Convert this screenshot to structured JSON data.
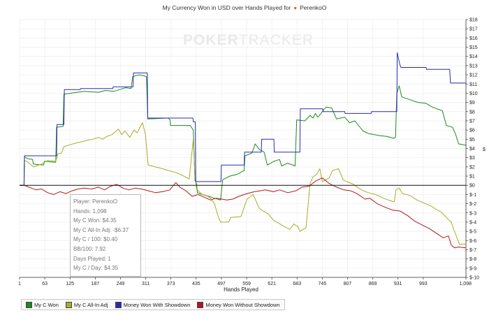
{
  "watermark": {
    "bold": "POKER",
    "light": "TRACKER"
  },
  "title": {
    "text": "My Currency Won in USD over Hands Played for",
    "player": "PerenkoO"
  },
  "chart_data": {
    "type": "line",
    "title": "My Currency Won in USD over Hands Played for PerenkoO",
    "xlabel": "Hands Played",
    "ylabel": "$",
    "xlim": [
      1,
      1098
    ],
    "ylim": [
      -10,
      18
    ],
    "x_ticks": [
      "1",
      "63",
      "125",
      "187",
      "249",
      "311",
      "373",
      "435",
      "497",
      "559",
      "621",
      "683",
      "745",
      "807",
      "869",
      "931",
      "993",
      "1,098"
    ],
    "y_ticks": [
      "$18",
      "$17",
      "$16",
      "$15",
      "$14",
      "$13",
      "$12",
      "$11",
      "$10",
      "$9",
      "$8",
      "$7",
      "$6",
      "$5",
      "$4",
      "$3",
      "$2",
      "$1",
      "$0",
      "$-1",
      "$-2",
      "$-3",
      "$-4",
      "$-5",
      "$-6",
      "$-7",
      "$-8",
      "$-9",
      "$-10"
    ],
    "grid": true,
    "legend_position": "bottom",
    "series": [
      {
        "name": "My C Won",
        "color": "#1c8a1c",
        "points": [
          [
            1,
            0
          ],
          [
            12,
            0
          ],
          [
            13,
            3.1
          ],
          [
            20,
            2.9
          ],
          [
            33,
            2.8
          ],
          [
            35,
            2.3
          ],
          [
            60,
            2.2
          ],
          [
            62,
            2.6
          ],
          [
            90,
            2.5
          ],
          [
            92,
            6.3
          ],
          [
            108,
            6.4
          ],
          [
            110,
            9.9
          ],
          [
            160,
            10.2
          ],
          [
            195,
            10.1
          ],
          [
            212,
            10.3
          ],
          [
            232,
            10.2
          ],
          [
            247,
            10.4
          ],
          [
            262,
            10.6
          ],
          [
            275,
            10.5
          ],
          [
            279,
            11.8
          ],
          [
            295,
            12.0
          ],
          [
            306,
            11.9
          ],
          [
            313,
            11.8
          ],
          [
            316,
            7.2
          ],
          [
            366,
            7.3
          ],
          [
            371,
            7.1
          ],
          [
            372,
            6.5
          ],
          [
            420,
            6.5
          ],
          [
            428,
            6.0
          ],
          [
            432,
            0.5
          ],
          [
            436,
            0.2
          ],
          [
            438,
            -0.8
          ],
          [
            450,
            -1.0
          ],
          [
            465,
            -1.2
          ],
          [
            480,
            -1.4
          ],
          [
            495,
            -1.6
          ],
          [
            500,
            0.6
          ],
          [
            518,
            1.0
          ],
          [
            536,
            1.2
          ],
          [
            553,
            1.6
          ],
          [
            555,
            3.2
          ],
          [
            572,
            3.5
          ],
          [
            580,
            4.5
          ],
          [
            590,
            3.9
          ],
          [
            602,
            3.6
          ],
          [
            610,
            2.2
          ],
          [
            626,
            2.6
          ],
          [
            640,
            2.8
          ],
          [
            645,
            2.1
          ],
          [
            660,
            2.4
          ],
          [
            678,
            2.1
          ],
          [
            682,
            7.1
          ],
          [
            702,
            7.0
          ],
          [
            715,
            7.6
          ],
          [
            722,
            7.3
          ],
          [
            728,
            7.8
          ],
          [
            734,
            7.4
          ],
          [
            742,
            7.8
          ],
          [
            748,
            8.2
          ],
          [
            755,
            8.5
          ],
          [
            768,
            8.4
          ],
          [
            780,
            7.2
          ],
          [
            800,
            7.4
          ],
          [
            812,
            6.8
          ],
          [
            825,
            7.0
          ],
          [
            845,
            5.9
          ],
          [
            860,
            5.6
          ],
          [
            885,
            5.4
          ],
          [
            905,
            5.3
          ],
          [
            920,
            5.1
          ],
          [
            925,
            5.2
          ],
          [
            928,
            10.0
          ],
          [
            934,
            10.8
          ],
          [
            940,
            9.6
          ],
          [
            960,
            9.3
          ],
          [
            980,
            9.0
          ],
          [
            1000,
            8.9
          ],
          [
            1015,
            8.5
          ],
          [
            1040,
            8.1
          ],
          [
            1050,
            6.5
          ],
          [
            1065,
            6.3
          ],
          [
            1072,
            5.6
          ],
          [
            1080,
            4.5
          ],
          [
            1098,
            4.35
          ]
        ]
      },
      {
        "name": "My C All-In Adj",
        "color": "#a8ac24",
        "points": [
          [
            1,
            0
          ],
          [
            12,
            0
          ],
          [
            13,
            2.7
          ],
          [
            22,
            2.5
          ],
          [
            35,
            2.0
          ],
          [
            55,
            2.3
          ],
          [
            70,
            2.7
          ],
          [
            90,
            2.6
          ],
          [
            95,
            3.4
          ],
          [
            104,
            3.5
          ],
          [
            110,
            4.2
          ],
          [
            125,
            4.4
          ],
          [
            140,
            4.6
          ],
          [
            160,
            4.8
          ],
          [
            180,
            5.0
          ],
          [
            195,
            5.2
          ],
          [
            205,
            5.0
          ],
          [
            215,
            5.3
          ],
          [
            228,
            5.5
          ],
          [
            236,
            5.8
          ],
          [
            244,
            6.1
          ],
          [
            252,
            5.5
          ],
          [
            260,
            5.9
          ],
          [
            272,
            5.2
          ],
          [
            282,
            6.0
          ],
          [
            290,
            5.7
          ],
          [
            303,
            6.8
          ],
          [
            310,
            5.6
          ],
          [
            317,
            2.2
          ],
          [
            335,
            2.0
          ],
          [
            352,
            1.8
          ],
          [
            367,
            1.6
          ],
          [
            385,
            1.4
          ],
          [
            400,
            1.1
          ],
          [
            418,
            0.7
          ],
          [
            428,
            5.0
          ],
          [
            432,
            0.9
          ],
          [
            436,
            -0.4
          ],
          [
            445,
            -0.8
          ],
          [
            450,
            -1.0
          ],
          [
            460,
            -1.1
          ],
          [
            470,
            -1.4
          ],
          [
            480,
            -2.0
          ],
          [
            490,
            -3.5
          ],
          [
            495,
            -4.0
          ],
          [
            515,
            -4.0
          ],
          [
            520,
            -3.5
          ],
          [
            545,
            -3.4
          ],
          [
            553,
            -2.4
          ],
          [
            560,
            -1.5
          ],
          [
            575,
            -1.0
          ],
          [
            590,
            -2.5
          ],
          [
            596,
            -2.7
          ],
          [
            612,
            -3.1
          ],
          [
            625,
            -3.8
          ],
          [
            645,
            -4.3
          ],
          [
            665,
            -4.8
          ],
          [
            675,
            -4.2
          ],
          [
            685,
            -4.5
          ],
          [
            690,
            -5.0
          ],
          [
            705,
            -4.6
          ],
          [
            715,
            0.2
          ],
          [
            722,
            0.9
          ],
          [
            731,
            1.2
          ],
          [
            739,
            1.8
          ],
          [
            745,
            0.4
          ],
          [
            762,
            0.8
          ],
          [
            770,
            1.6
          ],
          [
            785,
            1.8
          ],
          [
            796,
            0.6
          ],
          [
            805,
            0.4
          ],
          [
            822,
            0.1
          ],
          [
            834,
            -0.3
          ],
          [
            846,
            -0.6
          ],
          [
            858,
            -0.8
          ],
          [
            876,
            -1.0
          ],
          [
            895,
            -1.4
          ],
          [
            914,
            -1.7
          ],
          [
            922,
            -1.8
          ],
          [
            926,
            -0.5
          ],
          [
            934,
            -0.3
          ],
          [
            942,
            -0.9
          ],
          [
            960,
            -1.1
          ],
          [
            978,
            -1.6
          ],
          [
            994,
            -1.9
          ],
          [
            1010,
            -2.2
          ],
          [
            1025,
            -2.6
          ],
          [
            1040,
            -3.0
          ],
          [
            1052,
            -3.6
          ],
          [
            1062,
            -4.0
          ],
          [
            1068,
            -4.8
          ],
          [
            1075,
            -5.6
          ],
          [
            1082,
            -6.4
          ],
          [
            1098,
            -6.37
          ]
        ]
      },
      {
        "name": "Money Won With Showdown",
        "color": "#2a2ab8",
        "points": [
          [
            1,
            0
          ],
          [
            12,
            0
          ],
          [
            13,
            3.2
          ],
          [
            92,
            3.2
          ],
          [
            93,
            6.6
          ],
          [
            110,
            6.6
          ],
          [
            111,
            10.4
          ],
          [
            150,
            10.4
          ],
          [
            151,
            10.5
          ],
          [
            230,
            10.5
          ],
          [
            231,
            10.7
          ],
          [
            280,
            10.7
          ],
          [
            281,
            12.2
          ],
          [
            315,
            12.2
          ],
          [
            316,
            7.3
          ],
          [
            427,
            7.3
          ],
          [
            428,
            6.9
          ],
          [
            433,
            6.9
          ],
          [
            434,
            0.4
          ],
          [
            496,
            0.4
          ],
          [
            497,
            2.2
          ],
          [
            553,
            2.2
          ],
          [
            554,
            3.6
          ],
          [
            595,
            3.6
          ],
          [
            596,
            5.0
          ],
          [
            626,
            5.0
          ],
          [
            627,
            3.6
          ],
          [
            690,
            3.6
          ],
          [
            691,
            8.3
          ],
          [
            746,
            8.3
          ],
          [
            747,
            8.0
          ],
          [
            800,
            8.0
          ],
          [
            801,
            7.8
          ],
          [
            865,
            7.8
          ],
          [
            866,
            8.0
          ],
          [
            928,
            8.0
          ],
          [
            929,
            14.4
          ],
          [
            935,
            13.2
          ],
          [
            938,
            12.8
          ],
          [
            1000,
            12.8
          ],
          [
            1001,
            12.6
          ],
          [
            1058,
            12.6
          ],
          [
            1060,
            11.1
          ],
          [
            1098,
            11.1
          ]
        ]
      },
      {
        "name": "Money Won Without Showdown",
        "color": "#b01818",
        "points": [
          [
            1,
            0
          ],
          [
            12,
            0
          ],
          [
            18,
            -0.1
          ],
          [
            30,
            -0.3
          ],
          [
            42,
            -0.5
          ],
          [
            55,
            -0.4
          ],
          [
            70,
            -0.8
          ],
          [
            85,
            -1.0
          ],
          [
            100,
            -0.7
          ],
          [
            115,
            -0.9
          ],
          [
            130,
            -0.6
          ],
          [
            145,
            -0.4
          ],
          [
            160,
            -0.3
          ],
          [
            178,
            -0.4
          ],
          [
            195,
            -0.2
          ],
          [
            210,
            -0.5
          ],
          [
            225,
            -0.1
          ],
          [
            240,
            0.1
          ],
          [
            255,
            -0.3
          ],
          [
            270,
            -0.5
          ],
          [
            285,
            -0.3
          ],
          [
            300,
            -0.4
          ],
          [
            318,
            -0.6
          ],
          [
            335,
            -0.8
          ],
          [
            352,
            -0.7
          ],
          [
            370,
            -0.5
          ],
          [
            385,
            0.3
          ],
          [
            395,
            -0.2
          ],
          [
            410,
            -0.6
          ],
          [
            425,
            -1.2
          ],
          [
            440,
            -1.0
          ],
          [
            455,
            -1.3
          ],
          [
            470,
            -1.6
          ],
          [
            485,
            -1.4
          ],
          [
            498,
            -1.5
          ],
          [
            510,
            -1.6
          ],
          [
            525,
            -1.5
          ],
          [
            540,
            -1.2
          ],
          [
            560,
            -0.9
          ],
          [
            578,
            -0.7
          ],
          [
            592,
            -0.6
          ],
          [
            605,
            -0.5
          ],
          [
            625,
            -0.7
          ],
          [
            640,
            -0.5
          ],
          [
            660,
            -0.8
          ],
          [
            680,
            -0.6
          ],
          [
            695,
            -0.2
          ],
          [
            712,
            -0.1
          ],
          [
            730,
            0.5
          ],
          [
            745,
            0.8
          ],
          [
            762,
            0.2
          ],
          [
            780,
            -0.2
          ],
          [
            798,
            -0.5
          ],
          [
            815,
            -0.6
          ],
          [
            830,
            -0.9
          ],
          [
            850,
            -1.5
          ],
          [
            862,
            -1.4
          ],
          [
            880,
            -2.0
          ],
          [
            900,
            -2.4
          ],
          [
            918,
            -2.7
          ],
          [
            936,
            -2.8
          ],
          [
            955,
            -3.3
          ],
          [
            972,
            -3.9
          ],
          [
            990,
            -4.3
          ],
          [
            1008,
            -4.7
          ],
          [
            1025,
            -5.2
          ],
          [
            1042,
            -5.7
          ],
          [
            1055,
            -5.5
          ],
          [
            1062,
            -6.5
          ],
          [
            1070,
            -6.8
          ],
          [
            1080,
            -6.7
          ],
          [
            1098,
            -6.8
          ]
        ]
      }
    ]
  },
  "infobox": {
    "lines": [
      "Player: PerenkoO",
      "Hands: 1,098",
      "My C Won: $4.35",
      "My C All-In Adj: -$6.37",
      "My C / 100: $0.40",
      "BB/100: 7.92",
      "Days Played: 1",
      "My C / Day: $4.35"
    ]
  }
}
